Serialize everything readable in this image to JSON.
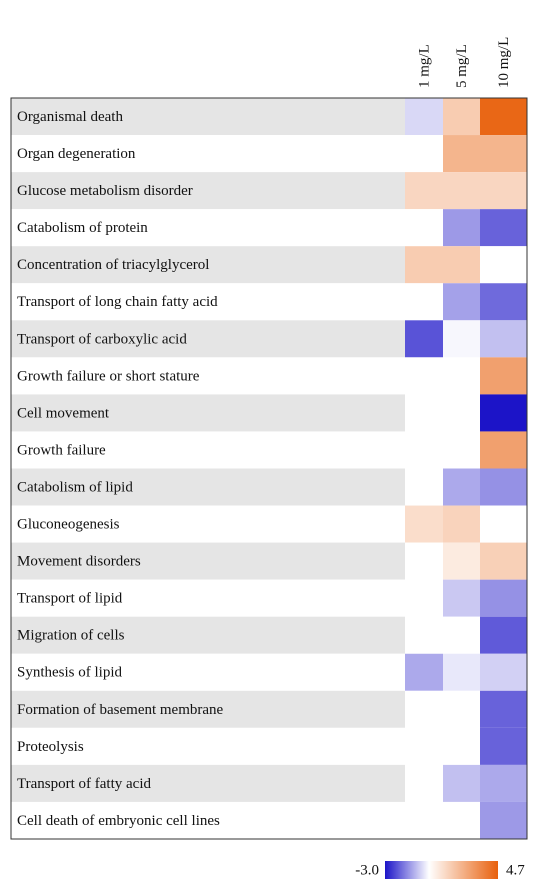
{
  "chart_data": {
    "type": "heatmap",
    "categories": [
      "Organismal death",
      "Organ degeneration",
      "Glucose metabolism disorder",
      "Catabolism of protein",
      "Concentration of triacylglycerol",
      "Transport of long chain fatty acid",
      "Transport of carboxylic acid",
      "Growth failure or short stature",
      "Cell movement",
      "Growth failure",
      "Catabolism of lipid",
      "Gluconeogenesis",
      "Movement disorders",
      "Transport of lipid",
      "Migration of cells",
      "Synthesis of lipid",
      "Formation of basement membrane",
      "Proteolysis",
      "Transport of fatty acid",
      "Cell death of embryonic cell lines"
    ],
    "series": [
      {
        "name": "1 mg/L",
        "values": [
          -0.5,
          0,
          1.2,
          0,
          1.5,
          0,
          -2.2,
          0,
          0,
          0,
          0,
          1.0,
          0,
          0,
          0,
          -1.1,
          0,
          0,
          0,
          0
        ]
      },
      {
        "name": "5 mg/L",
        "values": [
          1.5,
          2.2,
          1.2,
          -1.3,
          1.5,
          -1.2,
          -0.1,
          0,
          0,
          0,
          -1.1,
          1.3,
          0.6,
          -0.7,
          0,
          -0.3,
          0,
          0,
          -0.8,
          0
        ]
      },
      {
        "name": "10 mg/L",
        "values": [
          4.5,
          2.2,
          1.2,
          -2.0,
          0,
          -1.9,
          -0.8,
          2.8,
          -3.0,
          2.8,
          -1.4,
          0,
          1.4,
          -1.4,
          -2.1,
          -0.6,
          -2.0,
          -2.0,
          -1.1,
          -1.3
        ]
      }
    ],
    "zlim": [
      -3.0,
      4.7
    ],
    "zticks": [
      {
        "value": -3.0,
        "label": "-3.0"
      },
      4.7
    ],
    "colorscale": [
      "#1c14c8",
      "#ffffff",
      "#e8600c"
    ]
  }
}
